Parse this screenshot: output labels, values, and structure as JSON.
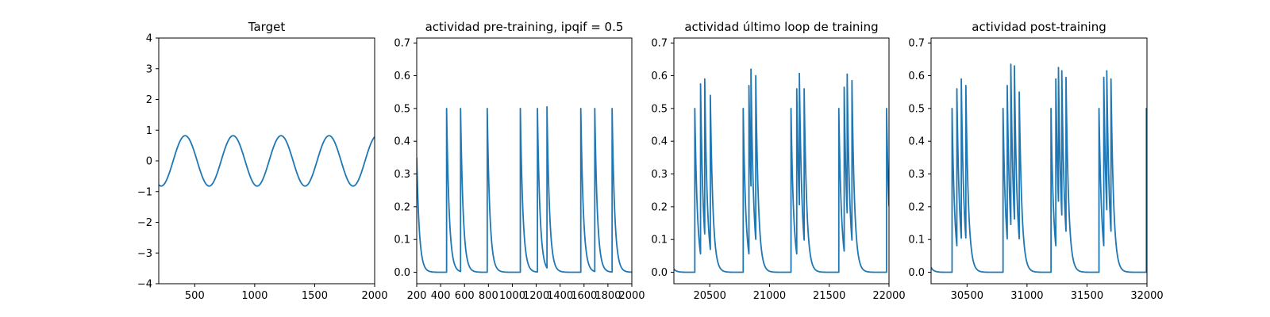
{
  "figure": {
    "line_color": "#1f77b4"
  },
  "chart_data": [
    {
      "type": "line",
      "title": "Target",
      "xlabel": "",
      "ylabel": "",
      "xlim": [
        200,
        2000
      ],
      "ylim": [
        -4,
        4
      ],
      "x_ticks": [
        500,
        1000,
        1500,
        2000
      ],
      "y_ticks": [
        -4,
        -3,
        -2,
        -1,
        0,
        1,
        2,
        3,
        4
      ],
      "x_tick_labels": [
        "500",
        "1000",
        "1500",
        "2000"
      ],
      "y_tick_labels": [
        "−4",
        "−3",
        "−2",
        "−1",
        "0",
        "1",
        "2",
        "3",
        "4"
      ],
      "grid": false,
      "series": [
        {
          "shape": "sine",
          "x_range": [
            200,
            2000
          ],
          "amplitude": 0.82,
          "period": 400,
          "peak_x": 420
        }
      ]
    },
    {
      "type": "line",
      "title": "actividad pre-training, ipqif = 0.5",
      "xlabel": "",
      "ylabel": "",
      "xlim": [
        200,
        2000
      ],
      "ylim": [
        -0.035,
        0.715
      ],
      "x_ticks": [
        200,
        400,
        600,
        800,
        1000,
        1200,
        1400,
        1600,
        1800,
        2000
      ],
      "y_ticks": [
        0.0,
        0.1,
        0.2,
        0.3,
        0.4,
        0.5,
        0.6,
        0.7
      ],
      "x_tick_labels": [
        "200",
        "400",
        "600",
        "800",
        "1000",
        "1200",
        "1400",
        "1600",
        "1800",
        "2000"
      ],
      "y_tick_labels": [
        "0.0",
        "0.1",
        "0.2",
        "0.3",
        "0.4",
        "0.5",
        "0.6",
        "0.7"
      ],
      "grid": false,
      "series": [
        {
          "shape": "spike-decay",
          "x_range": [
            200,
            2000
          ],
          "initial_value": 0.35,
          "decay_tau": 22,
          "spikes": [
            {
              "x": 450,
              "peak": 0.5
            },
            {
              "x": 567,
              "peak": 0.5
            },
            {
              "x": 790,
              "peak": 0.5
            },
            {
              "x": 1067,
              "peak": 0.5
            },
            {
              "x": 1210,
              "peak": 0.5
            },
            {
              "x": 1290,
              "peak": 0.505
            },
            {
              "x": 1573,
              "peak": 0.5
            },
            {
              "x": 1690,
              "peak": 0.5
            },
            {
              "x": 1835,
              "peak": 0.5
            }
          ]
        }
      ]
    },
    {
      "type": "line",
      "title": "actividad último loop de training",
      "xlabel": "",
      "ylabel": "",
      "xlim": [
        20200,
        22000
      ],
      "ylim": [
        -0.035,
        0.715
      ],
      "x_ticks": [
        20500,
        21000,
        21500,
        22000
      ],
      "y_ticks": [
        0.0,
        0.1,
        0.2,
        0.3,
        0.4,
        0.5,
        0.6,
        0.7
      ],
      "x_tick_labels": [
        "20500",
        "21000",
        "21500",
        "22000"
      ],
      "y_tick_labels": [
        "0.0",
        "0.1",
        "0.2",
        "0.3",
        "0.4",
        "0.5",
        "0.6",
        "0.7"
      ],
      "grid": false,
      "series": [
        {
          "shape": "spike-decay",
          "x_range": [
            20200,
            22000
          ],
          "initial_value": 0.01,
          "decay_tau": 22,
          "spikes": [
            {
              "x": 20375,
              "peak": 0.5
            },
            {
              "x": 20423,
              "peak": 0.575
            },
            {
              "x": 20458,
              "peak": 0.59
            },
            {
              "x": 20505,
              "peak": 0.54
            },
            {
              "x": 20780,
              "peak": 0.5
            },
            {
              "x": 20828,
              "peak": 0.57
            },
            {
              "x": 20845,
              "peak": 0.62
            },
            {
              "x": 20885,
              "peak": 0.6
            },
            {
              "x": 21180,
              "peak": 0.5
            },
            {
              "x": 21228,
              "peak": 0.56
            },
            {
              "x": 21250,
              "peak": 0.607
            },
            {
              "x": 21290,
              "peak": 0.56
            },
            {
              "x": 21580,
              "peak": 0.5
            },
            {
              "x": 21625,
              "peak": 0.565
            },
            {
              "x": 21650,
              "peak": 0.605
            },
            {
              "x": 21690,
              "peak": 0.585
            },
            {
              "x": 21980,
              "peak": 0.5
            }
          ]
        }
      ]
    },
    {
      "type": "line",
      "title": "actividad post-training",
      "xlabel": "",
      "ylabel": "",
      "xlim": [
        30200,
        32000
      ],
      "ylim": [
        -0.035,
        0.715
      ],
      "x_ticks": [
        30500,
        31000,
        31500,
        32000
      ],
      "y_ticks": [
        0.0,
        0.1,
        0.2,
        0.3,
        0.4,
        0.5,
        0.6,
        0.7
      ],
      "x_tick_labels": [
        "30500",
        "31000",
        "31500",
        "32000"
      ],
      "y_tick_labels": [
        "0.0",
        "0.1",
        "0.2",
        "0.3",
        "0.4",
        "0.5",
        "0.6",
        "0.7"
      ],
      "grid": false,
      "series": [
        {
          "shape": "spike-decay",
          "x_range": [
            30200,
            32000
          ],
          "initial_value": 0.015,
          "decay_tau": 22,
          "spikes": [
            {
              "x": 30375,
              "peak": 0.5
            },
            {
              "x": 30415,
              "peak": 0.56
            },
            {
              "x": 30452,
              "peak": 0.59
            },
            {
              "x": 30490,
              "peak": 0.57
            },
            {
              "x": 30800,
              "peak": 0.5
            },
            {
              "x": 30835,
              "peak": 0.57
            },
            {
              "x": 30865,
              "peak": 0.635
            },
            {
              "x": 30895,
              "peak": 0.63
            },
            {
              "x": 30935,
              "peak": 0.55
            },
            {
              "x": 31200,
              "peak": 0.5
            },
            {
              "x": 31240,
              "peak": 0.59
            },
            {
              "x": 31262,
              "peak": 0.625
            },
            {
              "x": 31290,
              "peak": 0.615
            },
            {
              "x": 31325,
              "peak": 0.595
            },
            {
              "x": 31600,
              "peak": 0.5
            },
            {
              "x": 31640,
              "peak": 0.595
            },
            {
              "x": 31665,
              "peak": 0.615
            },
            {
              "x": 31700,
              "peak": 0.59
            },
            {
              "x": 31995,
              "peak": 0.5
            }
          ]
        }
      ]
    }
  ]
}
